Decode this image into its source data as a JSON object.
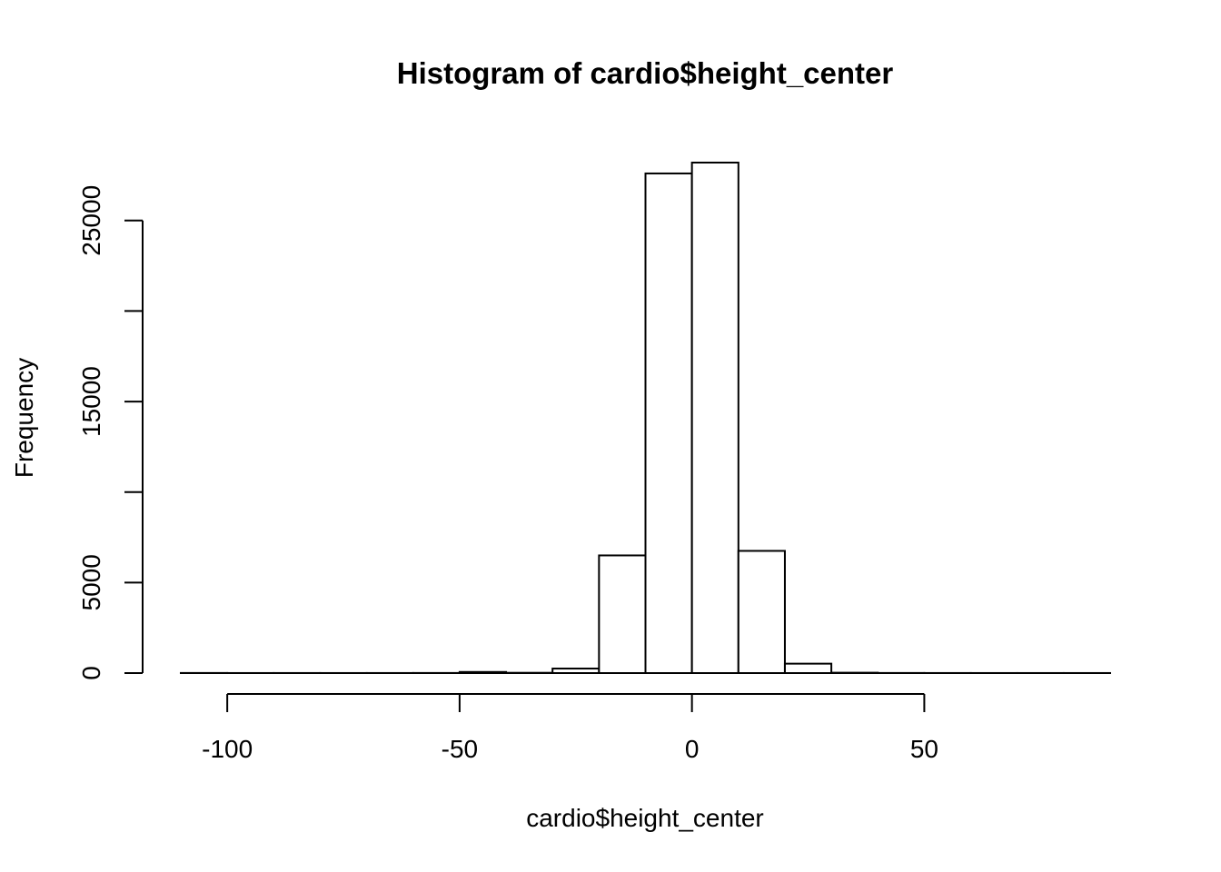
{
  "chart_data": {
    "type": "bar",
    "title": "Histogram of cardio$height_center",
    "xlabel": "cardio$height_center",
    "ylabel": "Frequency",
    "bin_edges": [
      -110,
      -100,
      -90,
      -80,
      -70,
      -60,
      -50,
      -40,
      -30,
      -20,
      -10,
      0,
      10,
      20,
      30,
      40,
      50,
      60,
      70,
      80,
      90
    ],
    "values": [
      5,
      2,
      3,
      2,
      3,
      5,
      60,
      15,
      250,
      6500,
      27600,
      28200,
      6750,
      520,
      20,
      5,
      3,
      2,
      2,
      2
    ],
    "xlim": [
      -110,
      90
    ],
    "ylim": [
      0,
      28200
    ],
    "x_ticks": [
      -100,
      -50,
      0,
      50
    ],
    "x_tick_labels": [
      "-100",
      "-50",
      "0",
      "50"
    ],
    "y_ticks": [
      0,
      5000,
      10000,
      15000,
      20000,
      25000
    ],
    "y_tick_labels": [
      "0",
      "5000",
      "",
      "15000",
      "",
      "25000"
    ],
    "grid": false,
    "legend": "none",
    "bar_fill": "#ffffff",
    "bar_stroke": "#000000"
  }
}
